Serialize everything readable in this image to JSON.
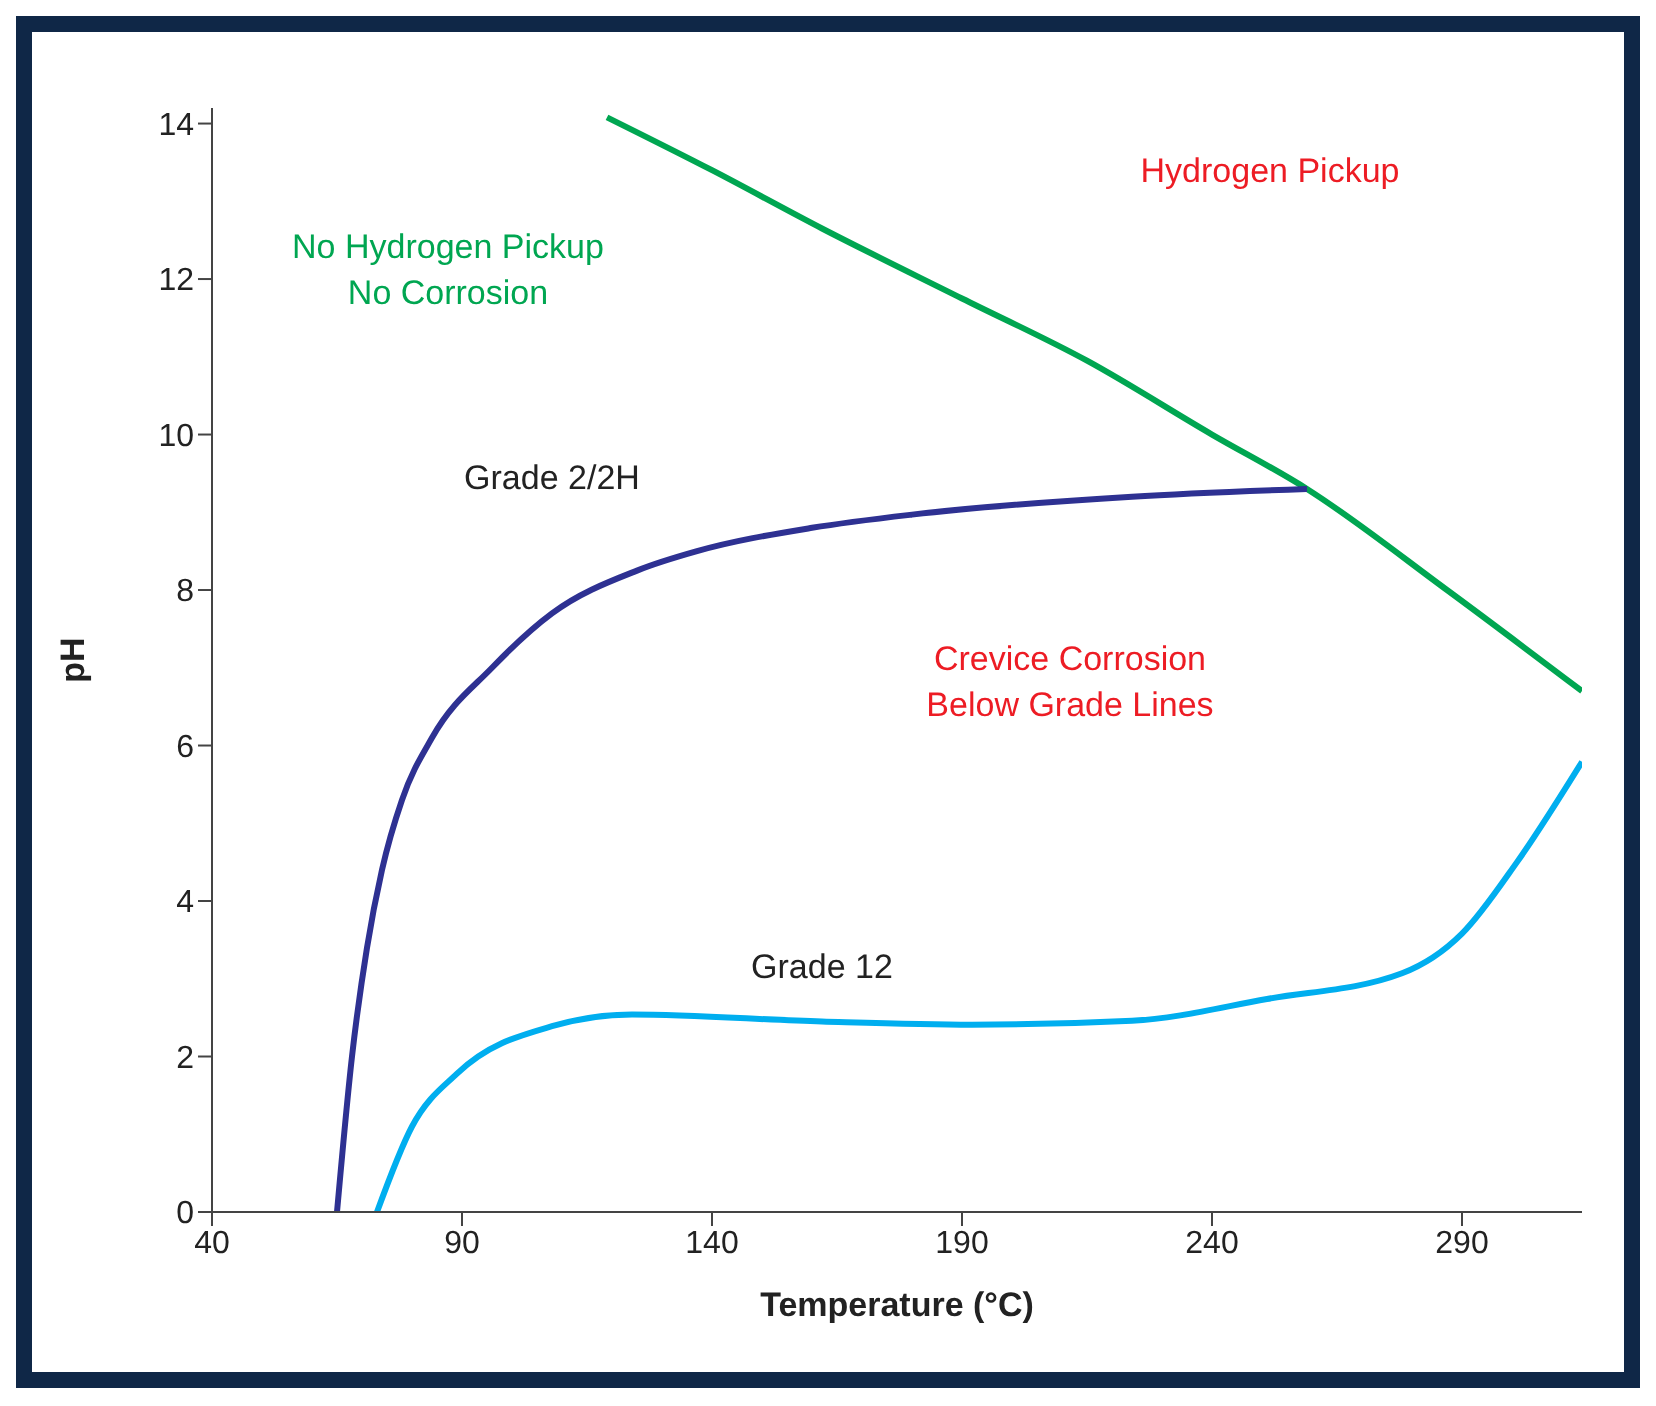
{
  "chart_data": {
    "type": "line",
    "xlabel": "Temperature (°C)",
    "ylabel": "pH",
    "xlim": [
      40,
      314
    ],
    "xticks": [
      40,
      90,
      140,
      190,
      240,
      290
    ],
    "ylim": [
      0,
      14.2
    ],
    "yticks": [
      0,
      2,
      4,
      6,
      8,
      10,
      12,
      14
    ],
    "marker": "none",
    "line_style": "solid",
    "series": [
      {
        "color": "#00a651",
        "x": [
          119,
          140,
          162,
          190,
          215,
          240,
          259,
          287,
          314
        ],
        "values": [
          14.08,
          13.4,
          12.65,
          11.75,
          10.95,
          10.0,
          9.3,
          8.0,
          6.7
        ]
      },
      {
        "name": "Grade 2/2H",
        "color": "#2e3192",
        "x": [
          65,
          68,
          71,
          74,
          78,
          84,
          96,
          108,
          125,
          137,
          160,
          180,
          224,
          259
        ],
        "values": [
          0,
          2.0,
          3.4,
          4.4,
          5.3,
          6.1,
          7.0,
          7.7,
          8.25,
          8.5,
          8.8,
          8.97,
          9.2,
          9.3
        ]
      },
      {
        "name": "Grade 12",
        "color": "#00aeef",
        "x": [
          73,
          80,
          89,
          108,
          124,
          162,
          192,
          224,
          251,
          278,
          290,
          301,
          314
        ],
        "values": [
          0,
          1.1,
          1.78,
          2.39,
          2.54,
          2.45,
          2.41,
          2.46,
          2.74,
          3.07,
          3.58,
          4.5,
          5.79
        ]
      }
    ],
    "annotations": [
      "No Hydrogen Pickup\nNo Corrosion",
      "Hydrogen Pickup",
      "Crevice Corrosion\nBelow Grade Lines"
    ]
  }
}
